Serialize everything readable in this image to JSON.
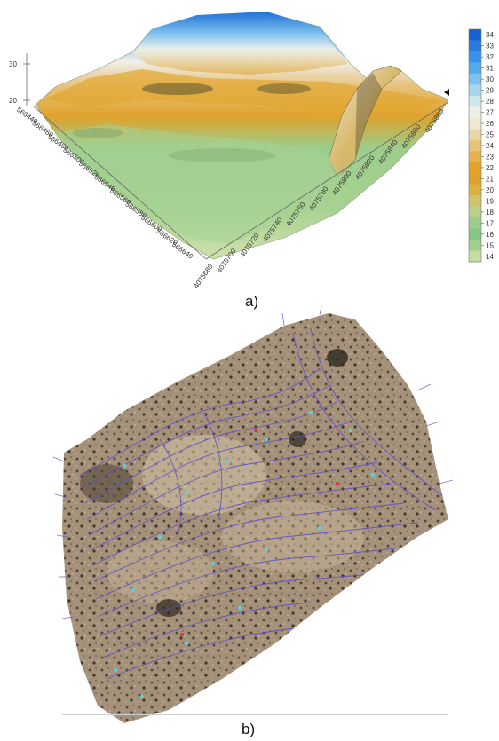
{
  "panel_a": {
    "caption": "a)",
    "z_axis_ticks": [
      "30",
      "20"
    ],
    "easting_ticks": [
      "566440",
      "566460",
      "566480",
      "566500",
      "566520",
      "566540",
      "566560",
      "566580",
      "566600",
      "566620",
      "566640"
    ],
    "northing_ticks": [
      "4075680",
      "4075700",
      "4075720",
      "4075740",
      "4075760",
      "4075780",
      "4075800",
      "4075820",
      "4075840",
      "4075860",
      "4075880"
    ],
    "colorbar": {
      "labels": [
        "34",
        "33",
        "32",
        "31",
        "30",
        "29",
        "28",
        "27",
        "26",
        "25",
        "24",
        "23",
        "22",
        "21",
        "20",
        "19",
        "18",
        "17",
        "16",
        "15",
        "14"
      ],
      "colors": [
        "#1a5fd6",
        "#2a7ae0",
        "#3a93e6",
        "#55aaec",
        "#7cc1ef",
        "#a6d6ee",
        "#cfe7ec",
        "#ecefe6",
        "#efe8d0",
        "#ead7a6",
        "#e8c47a",
        "#e6b24e",
        "#e2a22c",
        "#dca22a",
        "#d9b044",
        "#cfc370",
        "#b9cf8a",
        "#9ccd8c",
        "#86c58a",
        "#a2cf8e",
        "#c6dca2"
      ]
    }
  },
  "panel_b": {
    "caption": "b)"
  }
}
